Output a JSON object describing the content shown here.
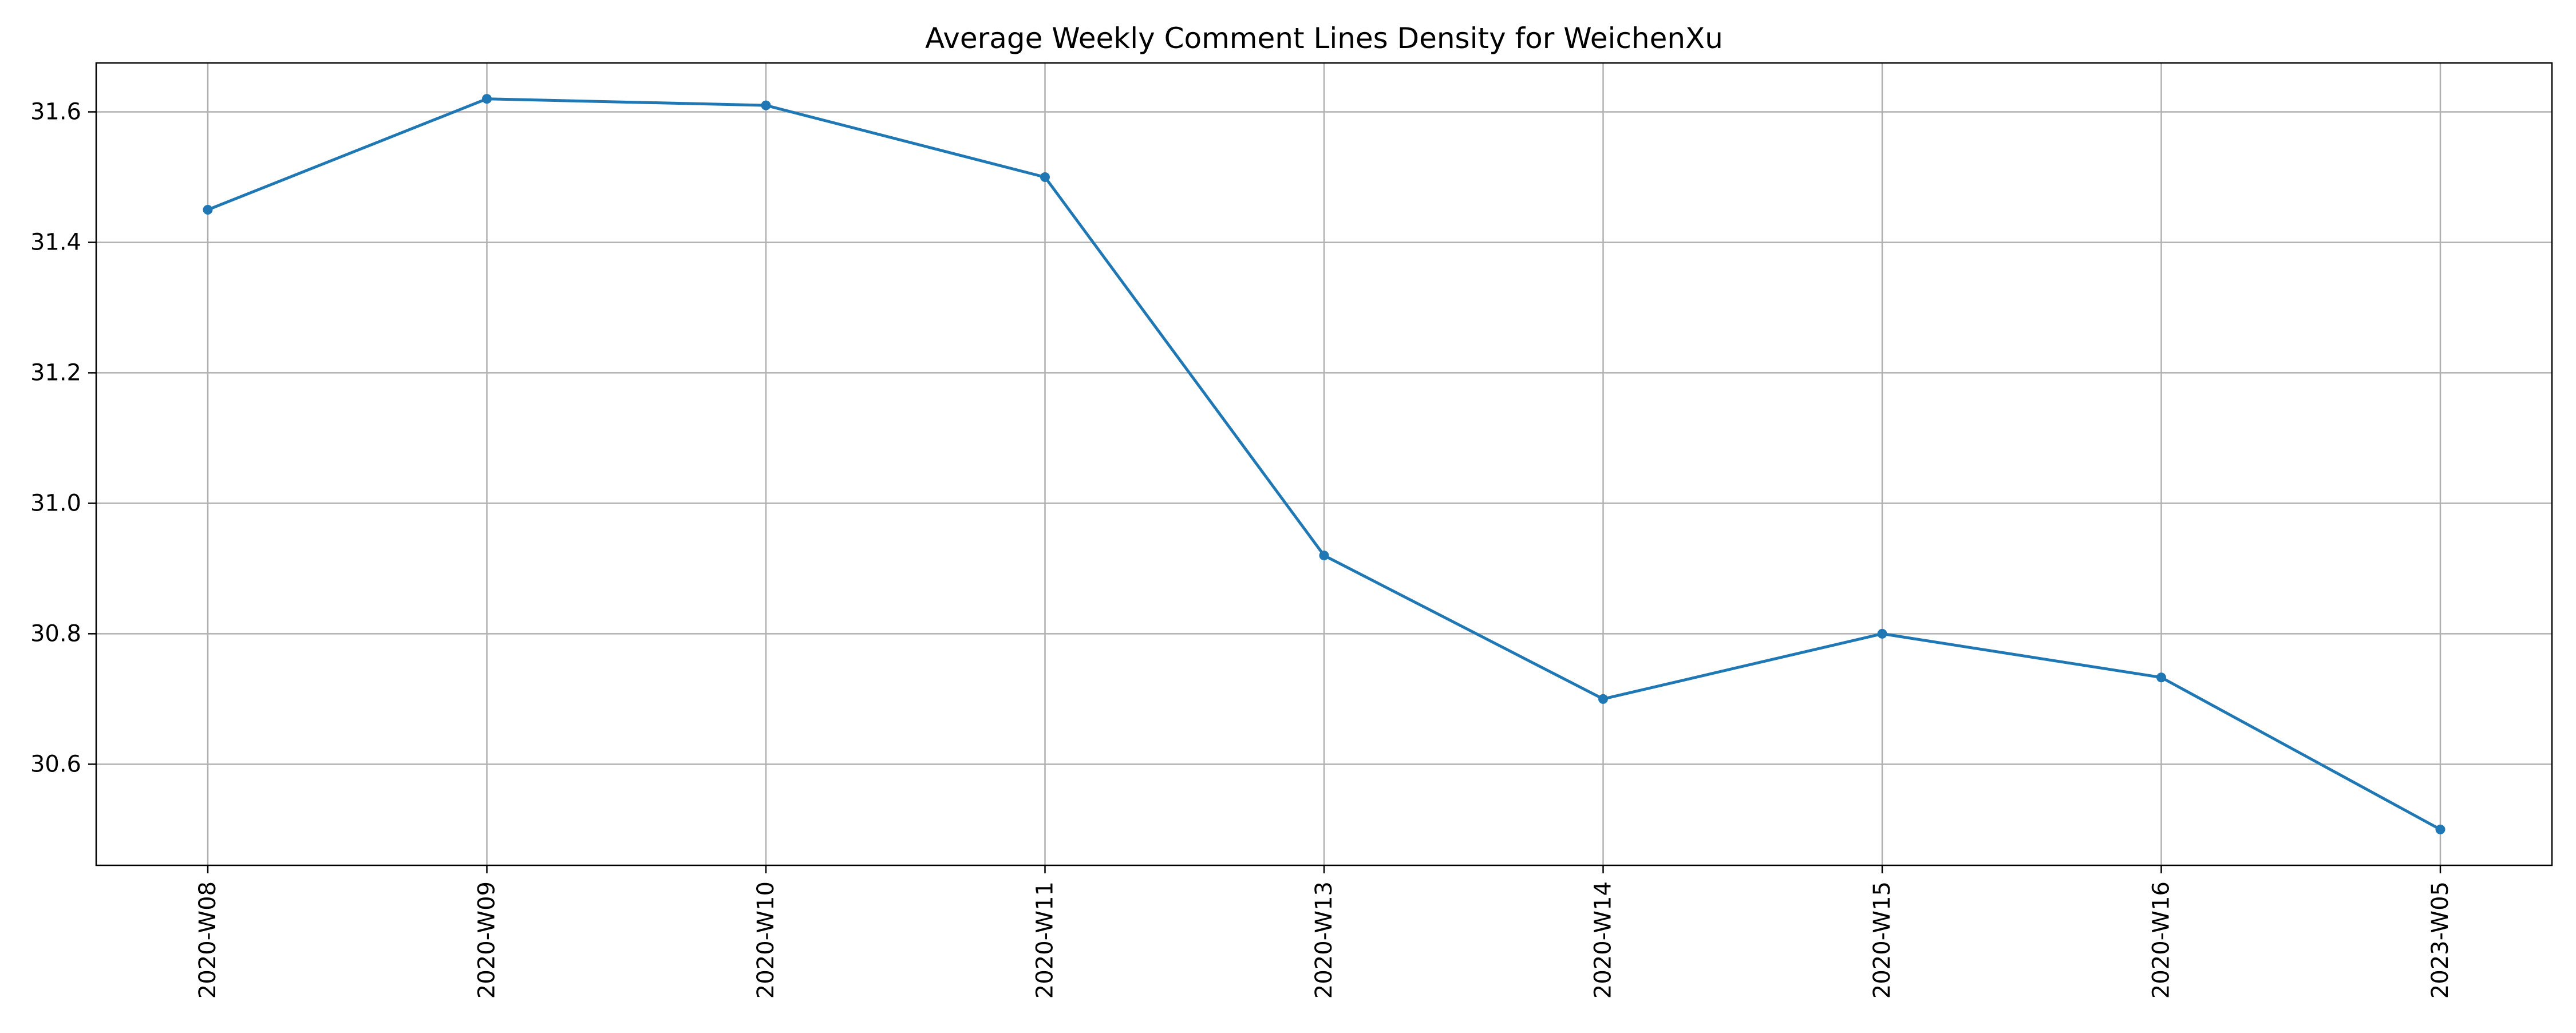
{
  "chart_data": {
    "type": "line",
    "title": "Average Weekly Comment Lines Density for WeichenXu",
    "xlabel": "",
    "ylabel": "",
    "categories": [
      "2020-W08",
      "2020-W09",
      "2020-W10",
      "2020-W11",
      "2020-W13",
      "2020-W14",
      "2020-W15",
      "2020-W16",
      "2023-W05"
    ],
    "series": [
      {
        "values": [
          31.45,
          31.62,
          31.61,
          31.5,
          30.92,
          30.7,
          30.8,
          30.733,
          30.5
        ]
      }
    ],
    "ylim": [
      30.445,
      31.675
    ],
    "yticks": [
      30.6,
      30.8,
      31.0,
      31.2,
      31.4,
      31.6
    ],
    "ytick_labels": [
      "30.6",
      "30.8",
      "31.0",
      "31.2",
      "31.4",
      "31.6"
    ],
    "grid": true,
    "legend": "none",
    "colors": {
      "line": "#1f77b4",
      "grid": "#b0b0b0",
      "axes": "#000000"
    }
  }
}
